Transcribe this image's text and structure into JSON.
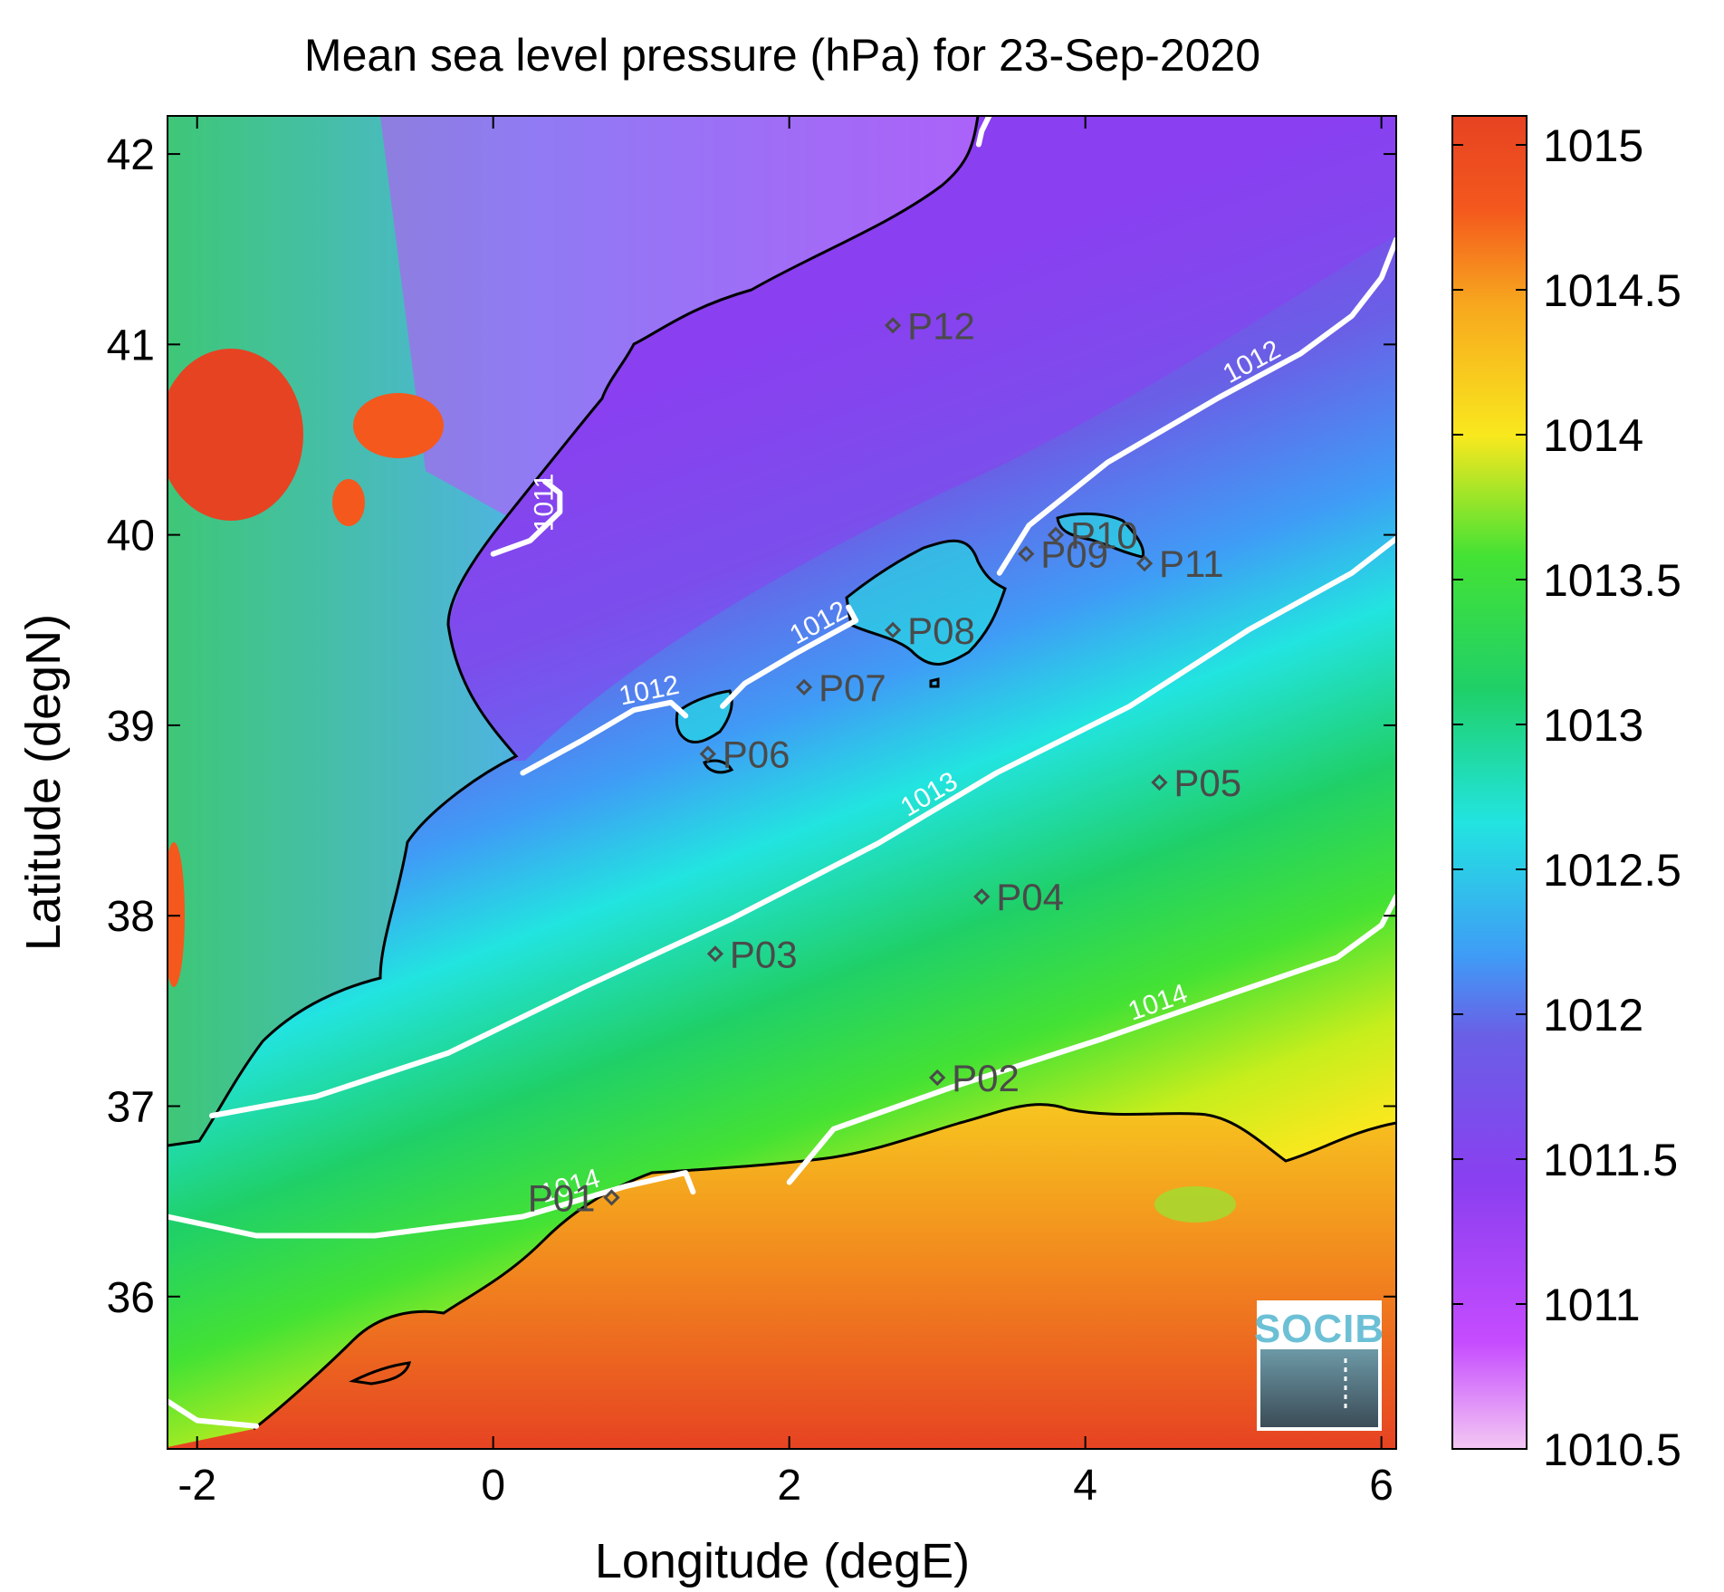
{
  "title": "Mean sea level pressure (hPa) for 23-Sep-2020",
  "xlabel": "Longitude (degE)",
  "ylabel": "Latitude (degN)",
  "logo_text": "SOCIB",
  "colors": {
    "land_outline": "#000000",
    "contour": "#ffffff",
    "station_marker": "#4a4a4a"
  },
  "chart_data": {
    "type": "heatmap",
    "xlim": [
      -2.2,
      6.1
    ],
    "ylim": [
      35.2,
      42.2
    ],
    "xticks": [
      -2,
      0,
      2,
      4,
      6
    ],
    "xtick_labels": [
      "-2",
      "0",
      "2",
      "4",
      "6"
    ],
    "yticks": [
      36,
      37,
      38,
      39,
      40,
      41,
      42
    ],
    "ytick_labels": [
      "36",
      "37",
      "38",
      "39",
      "40",
      "41",
      "42"
    ],
    "colorbar": {
      "range": [
        1010.5,
        1015.1
      ],
      "ticks": [
        1010.5,
        1011,
        1011.5,
        1012,
        1012.5,
        1013,
        1013.5,
        1014,
        1014.5,
        1015
      ],
      "tick_labels": [
        "1010.5",
        "1011",
        "1011.5",
        "1012",
        "1012.5",
        "1013",
        "1013.5",
        "1014",
        "1014.5",
        "1015"
      ],
      "colormap": [
        "#f3c8f3",
        "#c64cff",
        "#8a3ff0",
        "#6a5fe6",
        "#3f9cf6",
        "#22e4e0",
        "#1fd068",
        "#44e234",
        "#c6ee1c",
        "#f9e81e",
        "#f7a61e",
        "#f4581d",
        "#e64322"
      ]
    },
    "contours": [
      {
        "level": 1011,
        "label": "1011",
        "points": [
          [
            0.0,
            39.9
          ],
          [
            0.25,
            39.97
          ],
          [
            0.45,
            40.12
          ],
          [
            0.45,
            40.22
          ],
          [
            0.35,
            40.28
          ]
        ]
      },
      {
        "level": 1011,
        "label": "",
        "points": [
          [
            3.35,
            42.2
          ],
          [
            3.3,
            42.12
          ],
          [
            3.28,
            42.05
          ]
        ]
      },
      {
        "level": 1012,
        "label": "1012",
        "points": [
          [
            0.2,
            38.75
          ],
          [
            0.6,
            38.92
          ],
          [
            0.95,
            39.08
          ],
          [
            1.2,
            39.12
          ],
          [
            1.3,
            39.05
          ]
        ]
      },
      {
        "level": 1012,
        "label": "1012",
        "points": [
          [
            1.55,
            39.1
          ],
          [
            1.7,
            39.22
          ],
          [
            2.05,
            39.38
          ],
          [
            2.45,
            39.55
          ],
          [
            2.4,
            39.62
          ]
        ]
      },
      {
        "level": 1012,
        "label": "1012",
        "points": [
          [
            3.42,
            39.8
          ],
          [
            3.62,
            40.05
          ],
          [
            4.15,
            40.38
          ],
          [
            4.9,
            40.72
          ],
          [
            5.45,
            40.95
          ],
          [
            5.8,
            41.15
          ],
          [
            6.0,
            41.35
          ],
          [
            6.1,
            41.55
          ]
        ]
      },
      {
        "level": 1013,
        "label": "1013",
        "points": [
          [
            -1.9,
            36.95
          ],
          [
            -1.2,
            37.05
          ],
          [
            -0.3,
            37.28
          ],
          [
            0.6,
            37.62
          ],
          [
            1.6,
            37.98
          ],
          [
            2.6,
            38.38
          ],
          [
            3.4,
            38.75
          ],
          [
            4.3,
            39.1
          ],
          [
            5.1,
            39.5
          ],
          [
            5.8,
            39.8
          ],
          [
            6.1,
            39.98
          ]
        ]
      },
      {
        "level": 1014,
        "label": "1014",
        "points": [
          [
            -2.2,
            36.42
          ],
          [
            -1.6,
            36.32
          ],
          [
            -0.8,
            36.32
          ],
          [
            0.2,
            36.42
          ],
          [
            0.9,
            36.58
          ],
          [
            1.3,
            36.65
          ],
          [
            1.35,
            36.55
          ]
        ]
      },
      {
        "level": 1014,
        "label": "1014",
        "points": [
          [
            2.0,
            36.6
          ],
          [
            2.3,
            36.88
          ],
          [
            3.1,
            37.1
          ],
          [
            4.1,
            37.35
          ],
          [
            4.95,
            37.58
          ],
          [
            5.7,
            37.78
          ],
          [
            6.0,
            37.95
          ],
          [
            6.1,
            38.1
          ]
        ]
      },
      {
        "level": 1014,
        "label": "",
        "points": [
          [
            -2.2,
            35.45
          ],
          [
            -2.0,
            35.35
          ],
          [
            -1.6,
            35.32
          ]
        ]
      }
    ],
    "stations": [
      {
        "id": "P01",
        "lon": 0.8,
        "lat": 36.52
      },
      {
        "id": "P02",
        "lon": 3.0,
        "lat": 37.15
      },
      {
        "id": "P03",
        "lon": 1.5,
        "lat": 37.8
      },
      {
        "id": "P04",
        "lon": 3.3,
        "lat": 38.1
      },
      {
        "id": "P05",
        "lon": 4.5,
        "lat": 38.7
      },
      {
        "id": "P06",
        "lon": 1.45,
        "lat": 38.85
      },
      {
        "id": "P07",
        "lon": 2.1,
        "lat": 39.2
      },
      {
        "id": "P08",
        "lon": 2.7,
        "lat": 39.5
      },
      {
        "id": "P09",
        "lon": 3.6,
        "lat": 39.9
      },
      {
        "id": "P10",
        "lon": 3.8,
        "lat": 40.0
      },
      {
        "id": "P11",
        "lon": 4.4,
        "lat": 39.85
      },
      {
        "id": "P12",
        "lon": 2.7,
        "lat": 41.1
      }
    ]
  }
}
